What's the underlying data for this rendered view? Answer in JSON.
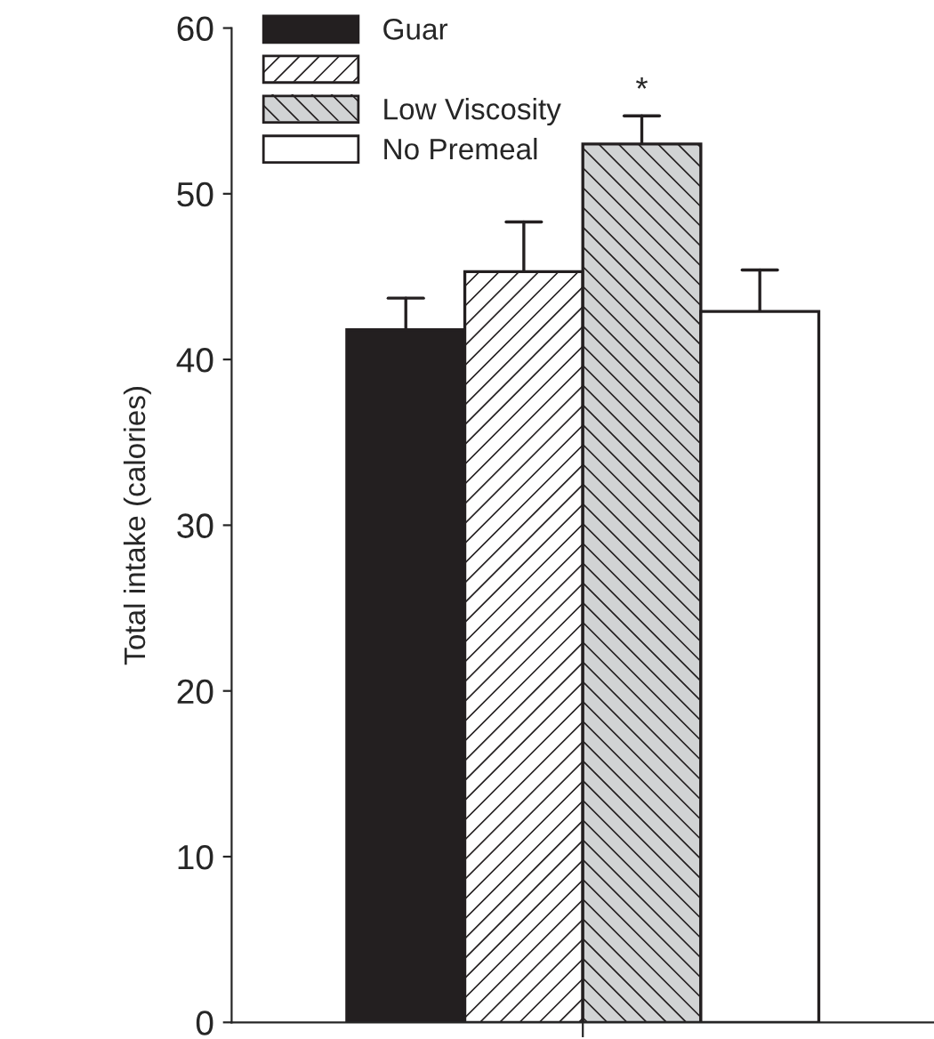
{
  "chart_data": {
    "type": "bar",
    "ylabel": "Total intake (calories)",
    "categories": [
      null
    ],
    "series": [
      {
        "name": "Guar",
        "color": "#231f20",
        "values": [
          41.8
        ],
        "errors": [
          [
            41.8,
            43.7
          ]
        ]
      },
      {
        "color": "#ffffff",
        "values": [
          45.3
        ],
        "errors": [
          [
            45.3,
            48.3
          ]
        ]
      },
      {
        "name": "Low Viscosity",
        "color": "#d1d3d4",
        "values": [
          53.0
        ],
        "errors": [
          [
            53.0,
            54.7
          ]
        ]
      },
      {
        "name": "No Premeal",
        "color": "#ffffff",
        "values": [
          42.9
        ],
        "errors": [
          [
            42.9,
            45.4
          ]
        ]
      }
    ],
    "ylim": [
      0,
      60
    ],
    "yticks": [
      0,
      10,
      20,
      30,
      40,
      50,
      60
    ],
    "legend": "top left",
    "grid": false,
    "annotations": [
      "*"
    ]
  }
}
